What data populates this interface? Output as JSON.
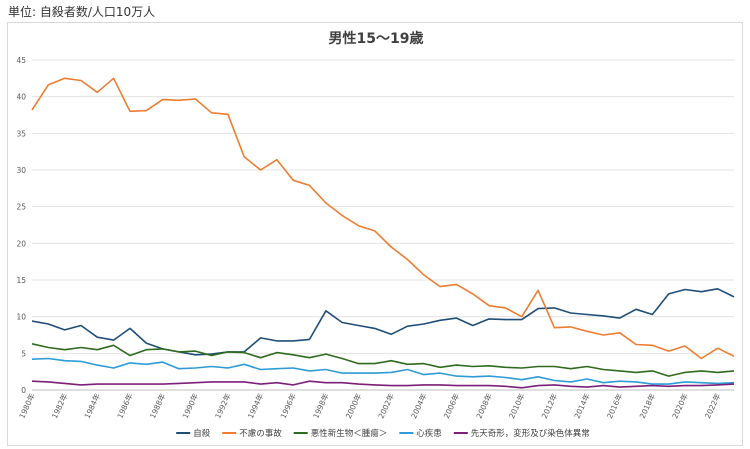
{
  "unit_label": "単位: 自殺者数/人口10万人",
  "chart_data": {
    "type": "line",
    "title": "男性15～19歳",
    "xlabel": "",
    "ylabel": "",
    "ylim": [
      0,
      45
    ],
    "yticks": [
      0,
      5,
      10,
      15,
      20,
      25,
      30,
      35,
      40,
      45
    ],
    "x": [
      1980,
      1981,
      1982,
      1983,
      1984,
      1985,
      1986,
      1987,
      1988,
      1989,
      1990,
      1991,
      1992,
      1993,
      1994,
      1995,
      1996,
      1997,
      1998,
      1999,
      2000,
      2001,
      2002,
      2003,
      2004,
      2005,
      2006,
      2007,
      2008,
      2009,
      2010,
      2011,
      2012,
      2013,
      2014,
      2015,
      2016,
      2017,
      2018,
      2019,
      2020,
      2021,
      2022,
      2023
    ],
    "x_tick_labels": [
      "1980年",
      "1982年",
      "1984年",
      "1986年",
      "1988年",
      "1990年",
      "1992年",
      "1994年",
      "1996年",
      "1998年",
      "2000年",
      "2002年",
      "2004年",
      "2006年",
      "2008年",
      "2010年",
      "2012年",
      "2014年",
      "2016年",
      "2018年",
      "2020年",
      "2022年"
    ],
    "grid": true,
    "legend_position": "bottom",
    "series": [
      {
        "name": "自殺",
        "color": "#1f4e79",
        "values": [
          9.4,
          9.0,
          8.2,
          8.8,
          7.2,
          6.8,
          8.4,
          6.4,
          5.6,
          5.2,
          4.8,
          4.9,
          5.2,
          5.2,
          7.1,
          6.7,
          6.7,
          6.9,
          10.8,
          9.2,
          8.8,
          8.4,
          7.6,
          8.7,
          9.0,
          9.5,
          9.8,
          8.8,
          9.7,
          9.6,
          9.6,
          11.1,
          11.2,
          10.5,
          10.3,
          10.1,
          9.8,
          11.0,
          10.3,
          13.1,
          13.7,
          13.4,
          13.8,
          12.7
        ]
      },
      {
        "name": "不慮の事故",
        "color": "#ed7d31",
        "values": [
          38.2,
          41.6,
          42.5,
          42.2,
          40.6,
          42.5,
          38.0,
          38.1,
          39.6,
          39.5,
          39.7,
          37.8,
          37.6,
          31.8,
          30.0,
          31.4,
          28.6,
          27.9,
          25.5,
          23.8,
          22.4,
          21.7,
          19.5,
          17.8,
          15.7,
          14.1,
          14.4,
          13.1,
          11.5,
          11.2,
          10.0,
          13.6,
          8.5,
          8.6,
          8.0,
          7.5,
          7.8,
          6.2,
          6.1,
          5.3,
          6.0,
          4.3,
          5.7,
          4.6
        ]
      },
      {
        "name": "悪性新生物＜腫瘍＞",
        "color": "#2e6b1e",
        "values": [
          6.3,
          5.8,
          5.5,
          5.8,
          5.5,
          6.1,
          4.7,
          5.5,
          5.6,
          5.2,
          5.3,
          4.7,
          5.2,
          5.1,
          4.4,
          5.1,
          4.8,
          4.4,
          4.9,
          4.3,
          3.6,
          3.6,
          4.0,
          3.5,
          3.6,
          3.1,
          3.4,
          3.2,
          3.3,
          3.1,
          3.0,
          3.2,
          3.2,
          2.9,
          3.2,
          2.8,
          2.6,
          2.4,
          2.6,
          1.9,
          2.4,
          2.6,
          2.4,
          2.6
        ]
      },
      {
        "name": "心疾患",
        "color": "#2e9bd6",
        "values": [
          4.2,
          4.3,
          4.0,
          3.9,
          3.4,
          3.0,
          3.7,
          3.5,
          3.8,
          2.9,
          3.0,
          3.2,
          3.0,
          3.5,
          2.8,
          2.9,
          3.0,
          2.6,
          2.8,
          2.3,
          2.3,
          2.3,
          2.4,
          2.8,
          2.1,
          2.3,
          1.9,
          1.8,
          1.9,
          1.7,
          1.4,
          1.8,
          1.3,
          1.1,
          1.5,
          1.0,
          1.2,
          1.1,
          0.8,
          0.8,
          1.1,
          1.0,
          0.9,
          1.0
        ]
      },
      {
        "name": "先天奇形，変形及び染色体異常",
        "color": "#7b1f7a",
        "values": [
          1.2,
          1.1,
          0.9,
          0.7,
          0.8,
          0.8,
          0.8,
          0.8,
          0.8,
          0.9,
          1.0,
          1.1,
          1.1,
          1.1,
          0.8,
          1.0,
          0.7,
          1.2,
          1.0,
          1.0,
          0.8,
          0.7,
          0.6,
          0.6,
          0.7,
          0.7,
          0.6,
          0.6,
          0.6,
          0.5,
          0.3,
          0.6,
          0.7,
          0.5,
          0.4,
          0.6,
          0.4,
          0.5,
          0.6,
          0.5,
          0.6,
          0.6,
          0.7,
          0.8
        ]
      }
    ]
  }
}
